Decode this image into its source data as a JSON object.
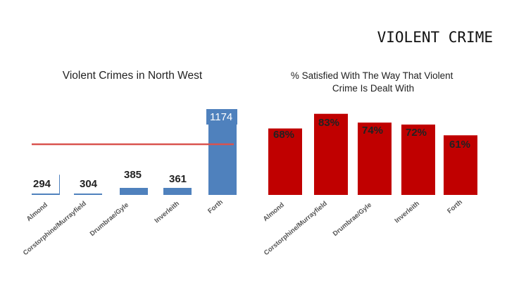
{
  "slide": {
    "title": "VIOLENT CRIME"
  },
  "chart_data": [
    {
      "type": "bar",
      "title": "Violent Crimes in North West",
      "categories": [
        "Almond",
        "Corstorphine/Murrayfield",
        "Drumbrae/Gyle",
        "Inverleith",
        "Forth"
      ],
      "values": [
        294,
        304,
        385,
        361,
        1174
      ],
      "value_labels": [
        "294",
        "304",
        "385",
        "361",
        "1174"
      ],
      "ylim": [
        0,
        1300
      ],
      "reference_line": 737,
      "colors": {
        "bar": "#4f81bd",
        "label_box": "#4f81bd",
        "reference_line": "#d9534f"
      }
    },
    {
      "type": "bar",
      "title": "% Satisfied With The Way That Violent Crime Is Dealt With",
      "title_lines": [
        "% Satisfied With The Way That Violent",
        "Crime Is Dealt With"
      ],
      "categories": [
        "Almond",
        "Corstorphine/Murrayfield",
        "Drumbrae/Gyle",
        "Inverleith",
        "Forth"
      ],
      "values": [
        68,
        83,
        74,
        72,
        61
      ],
      "value_labels": [
        "68%",
        "83%",
        "74%",
        "72%",
        "61%"
      ],
      "ylim": [
        0,
        100
      ],
      "colors": {
        "bar": "#c00000"
      }
    }
  ]
}
